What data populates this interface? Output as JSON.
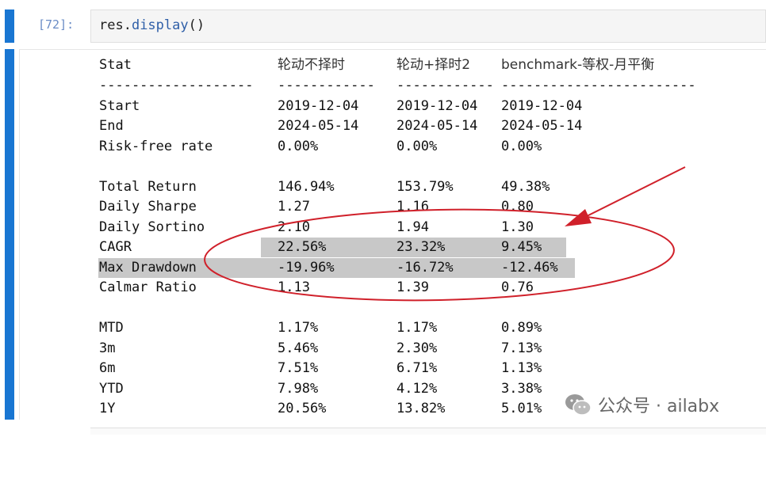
{
  "cell": {
    "prompt": "[72]:",
    "code_obj": "res.",
    "code_fn": "display",
    "code_tail": "()"
  },
  "table": {
    "header": [
      "Stat",
      "轮动不择时",
      "轮动+择时2",
      "benchmark-等权-月平衡"
    ],
    "separators": [
      "-------------------",
      "------------",
      "------------",
      "------------------------"
    ],
    "rows": [
      [
        "Start",
        "2019-12-04",
        "2019-12-04",
        "2019-12-04"
      ],
      [
        "End",
        "2024-05-14",
        "2024-05-14",
        "2024-05-14"
      ],
      [
        "Risk-free rate",
        "0.00%",
        "0.00%",
        "0.00%"
      ],
      [
        "Total Return",
        "146.94%",
        "153.79%",
        "49.38%"
      ],
      [
        "Daily Sharpe",
        "1.27",
        "1.16",
        "0.80"
      ],
      [
        "Daily Sortino",
        "2.10",
        "1.94",
        "1.30"
      ],
      [
        "CAGR",
        "22.56%",
        "23.32%",
        "9.45%"
      ],
      [
        "Max Drawdown",
        "-19.96%",
        "-16.72%",
        "-12.46%"
      ],
      [
        "Calmar Ratio",
        "1.13",
        "1.39",
        "0.76"
      ],
      [
        "MTD",
        "1.17%",
        "1.17%",
        "0.89%"
      ],
      [
        "3m",
        "5.46%",
        "2.30%",
        "7.13%"
      ],
      [
        "6m",
        "7.51%",
        "6.71%",
        "1.13%"
      ],
      [
        "YTD",
        "7.98%",
        "4.12%",
        "3.38%"
      ],
      [
        "1Y",
        "20.56%",
        "13.82%",
        "5.01%"
      ]
    ]
  },
  "annotation": {
    "color": "#d0202a"
  },
  "watermark": {
    "text": "公众号 · ailabx",
    "icon": "wechat-icon"
  }
}
